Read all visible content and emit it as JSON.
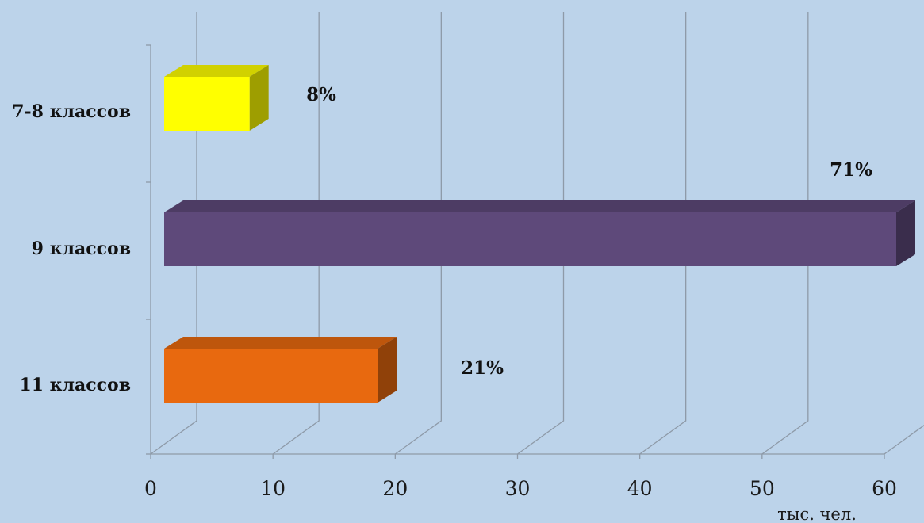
{
  "chart_data": {
    "type": "bar",
    "orientation": "horizontal",
    "style": "3d",
    "categories": [
      "7-8 классов",
      "9 классов",
      "11 классов"
    ],
    "values": [
      7,
      60,
      17.5
    ],
    "data_labels": [
      "8%",
      "71%",
      "21%"
    ],
    "colors": [
      "#ffff00",
      "#5e497a",
      "#e8690f"
    ],
    "x_ticks": [
      "0",
      "10",
      "20",
      "30",
      "40",
      "50",
      "60"
    ],
    "xlim": [
      0,
      60
    ],
    "unit_label": "тыс. чел.",
    "grid": true,
    "legend": "none"
  }
}
